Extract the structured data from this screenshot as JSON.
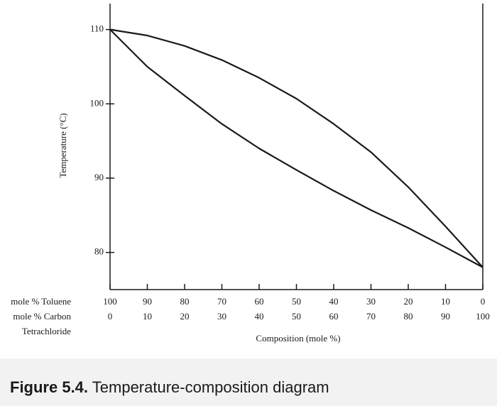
{
  "chart_data": {
    "type": "line",
    "x": [
      0,
      10,
      20,
      30,
      40,
      50,
      60,
      70,
      80,
      90,
      100
    ],
    "series": [
      {
        "color": "#1a1a1a",
        "values": [
          110,
          109.2,
          107.8,
          105.9,
          103.5,
          100.7,
          97.3,
          93.5,
          88.8,
          83.5,
          78
        ]
      },
      {
        "color": "#1a1a1a",
        "values": [
          110,
          105,
          101.1,
          97.3,
          94,
          91.1,
          88.3,
          85.7,
          83.3,
          80.7,
          78
        ]
      }
    ],
    "xlim": [
      0,
      100
    ],
    "xticks": [
      0,
      10,
      20,
      30,
      40,
      50,
      60,
      70,
      80,
      90,
      100
    ],
    "toluene_ticks": [
      100,
      90,
      80,
      70,
      60,
      50,
      40,
      30,
      20,
      10,
      0
    ],
    "x_row_labels": [
      "mole % Toluene",
      "mole % Carbon",
      "Tetrachloride"
    ],
    "ylim": [
      75,
      113.5
    ],
    "yticks": [
      80,
      90,
      100,
      110
    ],
    "xlabel": "Composition (mole %)",
    "ylabel": "Temperature (°C)",
    "caption_label": "Figure 5.4.",
    "caption_text": "Temperature-composition diagram"
  }
}
